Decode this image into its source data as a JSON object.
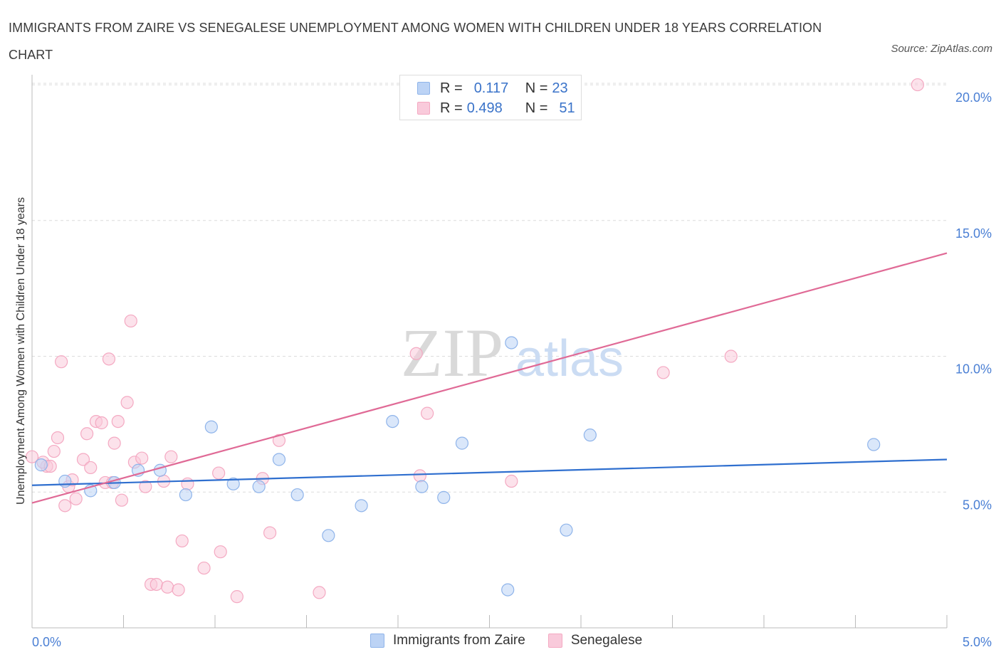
{
  "title": "IMMIGRANTS FROM ZAIRE VS SENEGALESE UNEMPLOYMENT AMONG WOMEN WITH CHILDREN UNDER 18 YEARS CORRELATION CHART",
  "source": "Source: ZipAtlas.com",
  "watermark": {
    "zip": "ZIP",
    "atlas": "atlas"
  },
  "legend": {
    "rows": [
      {
        "r_label": "R =",
        "r_value": "0.117",
        "n_label": "N =",
        "n_value": "23"
      },
      {
        "r_label": "R =",
        "r_value": "0.498",
        "n_label": "N =",
        "n_value": "51"
      }
    ]
  },
  "chart_data": {
    "type": "scatter",
    "title": "IMMIGRANTS FROM ZAIRE VS SENEGALESE UNEMPLOYMENT AMONG WOMEN WITH CHILDREN UNDER 18 YEARS CORRELATION CHART",
    "xlabel": "",
    "ylabel": "Unemployment Among Women with Children Under 18 years",
    "xlim": [
      0,
      5
    ],
    "ylim": [
      0,
      20.5
    ],
    "x_tick_labels": [
      "0.0%",
      "5.0%"
    ],
    "y_ticks": [
      5,
      10,
      15,
      20
    ],
    "y_tick_labels": [
      "5.0%",
      "10.0%",
      "15.0%",
      "20.0%"
    ],
    "grid": true,
    "legend_position": "top-center",
    "series": [
      {
        "name": "Immigrants from Zaire",
        "color": "#8fb4ea",
        "line_color": "#2f6fcf",
        "trend": [
          [
            0,
            5.25
          ],
          [
            5,
            6.2
          ]
        ],
        "points": [
          [
            0.05,
            6.0
          ],
          [
            0.18,
            5.4
          ],
          [
            0.32,
            5.05
          ],
          [
            0.45,
            5.35
          ],
          [
            0.58,
            5.8
          ],
          [
            0.7,
            5.8
          ],
          [
            0.84,
            4.9
          ],
          [
            0.98,
            7.4
          ],
          [
            1.1,
            5.3
          ],
          [
            1.24,
            5.2
          ],
          [
            1.35,
            6.2
          ],
          [
            1.45,
            4.9
          ],
          [
            1.62,
            3.4
          ],
          [
            1.8,
            4.5
          ],
          [
            1.97,
            7.6
          ],
          [
            2.13,
            5.2
          ],
          [
            2.25,
            4.8
          ],
          [
            2.35,
            6.8
          ],
          [
            2.6,
            1.4
          ],
          [
            2.62,
            10.5
          ],
          [
            2.92,
            3.6
          ],
          [
            3.05,
            7.1
          ],
          [
            4.6,
            6.75
          ]
        ]
      },
      {
        "name": "Senegalese",
        "color": "#f4a9c2",
        "line_color": "#e06a96",
        "trend": [
          [
            0,
            4.6
          ],
          [
            5,
            13.8
          ]
        ],
        "points": [
          [
            0.0,
            6.3
          ],
          [
            0.08,
            5.95
          ],
          [
            0.12,
            6.5
          ],
          [
            0.14,
            7.0
          ],
          [
            0.16,
            9.8
          ],
          [
            0.18,
            4.5
          ],
          [
            0.2,
            5.2
          ],
          [
            0.24,
            4.75
          ],
          [
            0.28,
            6.2
          ],
          [
            0.3,
            7.15
          ],
          [
            0.32,
            5.9
          ],
          [
            0.35,
            7.6
          ],
          [
            0.38,
            7.55
          ],
          [
            0.4,
            5.35
          ],
          [
            0.42,
            9.9
          ],
          [
            0.45,
            6.8
          ],
          [
            0.47,
            7.6
          ],
          [
            0.49,
            4.7
          ],
          [
            0.52,
            8.3
          ],
          [
            0.54,
            11.3
          ],
          [
            0.56,
            6.1
          ],
          [
            0.6,
            6.25
          ],
          [
            0.62,
            5.2
          ],
          [
            0.65,
            1.6
          ],
          [
            0.68,
            1.6
          ],
          [
            0.72,
            5.4
          ],
          [
            0.74,
            1.5
          ],
          [
            0.76,
            6.3
          ],
          [
            0.8,
            1.4
          ],
          [
            0.82,
            3.2
          ],
          [
            0.85,
            5.3
          ],
          [
            0.94,
            2.2
          ],
          [
            1.02,
            5.7
          ],
          [
            1.03,
            2.8
          ],
          [
            1.12,
            1.15
          ],
          [
            1.26,
            5.5
          ],
          [
            1.3,
            3.5
          ],
          [
            1.35,
            6.9
          ],
          [
            1.57,
            1.3
          ],
          [
            2.1,
            10.1
          ],
          [
            2.12,
            5.6
          ],
          [
            2.16,
            7.9
          ],
          [
            2.6,
            19.7
          ],
          [
            2.62,
            5.4
          ],
          [
            3.45,
            9.4
          ],
          [
            3.82,
            10.0
          ],
          [
            4.84,
            20.0
          ],
          [
            0.06,
            6.1
          ],
          [
            0.1,
            5.95
          ],
          [
            0.22,
            5.45
          ],
          [
            0.44,
            5.35
          ]
        ]
      }
    ]
  }
}
